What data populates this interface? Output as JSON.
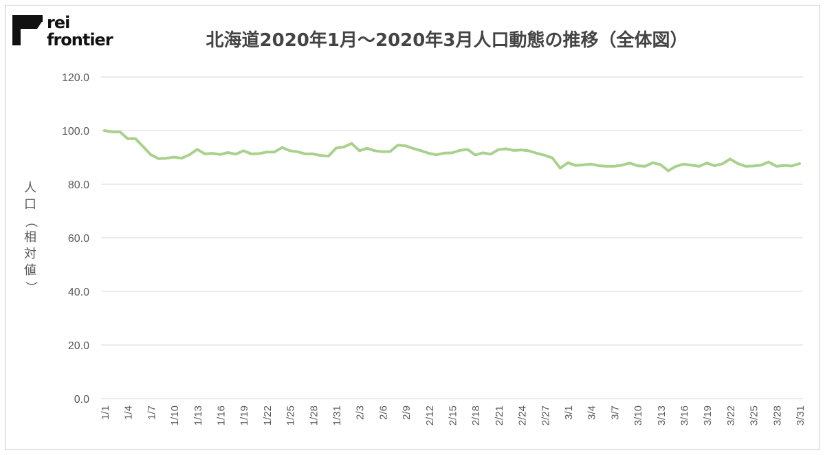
{
  "brand": {
    "line1": "rei",
    "line2": "frontier"
  },
  "chart_data": {
    "type": "line",
    "title": "北海道2020年1月～2020年3月人口動態の推移（全体図）",
    "ylabel": "人口（相対値）",
    "xlabel": "",
    "ylim": [
      0,
      120
    ],
    "yticks": [
      "0.0",
      "20.0",
      "40.0",
      "60.0",
      "80.0",
      "100.0",
      "120.0"
    ],
    "grid": true,
    "line_color": "#a9d18e",
    "categories": [
      "1/1",
      "1/2",
      "1/3",
      "1/4",
      "1/5",
      "1/6",
      "1/7",
      "1/8",
      "1/9",
      "1/10",
      "1/11",
      "1/12",
      "1/13",
      "1/14",
      "1/15",
      "1/16",
      "1/17",
      "1/18",
      "1/19",
      "1/20",
      "1/21",
      "1/22",
      "1/23",
      "1/24",
      "1/25",
      "1/26",
      "1/27",
      "1/28",
      "1/29",
      "1/30",
      "1/31",
      "2/1",
      "2/2",
      "2/3",
      "2/4",
      "2/5",
      "2/6",
      "2/7",
      "2/8",
      "2/9",
      "2/10",
      "2/11",
      "2/12",
      "2/13",
      "2/14",
      "2/15",
      "2/16",
      "2/17",
      "2/18",
      "2/19",
      "2/20",
      "2/21",
      "2/22",
      "2/23",
      "2/24",
      "2/25",
      "2/26",
      "2/27",
      "2/28",
      "2/29",
      "3/1",
      "3/2",
      "3/3",
      "3/4",
      "3/5",
      "3/6",
      "3/7",
      "3/8",
      "3/9",
      "3/10",
      "3/11",
      "3/12",
      "3/13",
      "3/14",
      "3/15",
      "3/16",
      "3/17",
      "3/18",
      "3/19",
      "3/20",
      "3/21",
      "3/22",
      "3/23",
      "3/24",
      "3/25",
      "3/26",
      "3/27",
      "3/28",
      "3/29",
      "3/30",
      "3/31"
    ],
    "tick_labels": [
      "1/1",
      "1/4",
      "1/7",
      "1/10",
      "1/13",
      "1/16",
      "1/19",
      "1/22",
      "1/25",
      "1/28",
      "1/31",
      "2/3",
      "2/6",
      "2/9",
      "2/12",
      "2/15",
      "2/18",
      "2/21",
      "2/24",
      "2/27",
      "3/1",
      "3/4",
      "3/7",
      "3/10",
      "3/13",
      "3/16",
      "3/19",
      "3/22",
      "3/25",
      "3/28",
      "3/31"
    ],
    "series": [
      {
        "values": [
          100.0,
          99.5,
          99.5,
          97.0,
          97.0,
          94.0,
          91.0,
          89.5,
          89.7,
          90.1,
          89.7,
          91.0,
          93.0,
          91.3,
          91.5,
          91.1,
          91.8,
          91.2,
          92.5,
          91.3,
          91.4,
          92.0,
          92.0,
          93.7,
          92.5,
          92.1,
          91.3,
          91.3,
          90.7,
          90.5,
          93.5,
          93.9,
          95.2,
          92.5,
          93.4,
          92.5,
          92.1,
          92.2,
          94.6,
          94.3,
          93.3,
          92.5,
          91.5,
          91.0,
          91.6,
          91.7,
          92.6,
          93.0,
          90.9,
          91.7,
          91.2,
          92.9,
          93.2,
          92.6,
          92.8,
          92.4,
          91.5,
          90.8,
          89.8,
          86.0,
          88.0,
          87.0,
          87.2,
          87.5,
          86.9,
          86.7,
          86.7,
          87.1,
          87.9,
          86.9,
          86.7,
          88.0,
          87.3,
          85.0,
          86.7,
          87.5,
          87.1,
          86.7,
          87.9,
          86.9,
          87.6,
          89.4,
          87.7,
          86.7,
          86.8,
          87.1,
          88.3,
          86.7,
          87.0,
          86.8,
          87.7
        ]
      }
    ]
  }
}
